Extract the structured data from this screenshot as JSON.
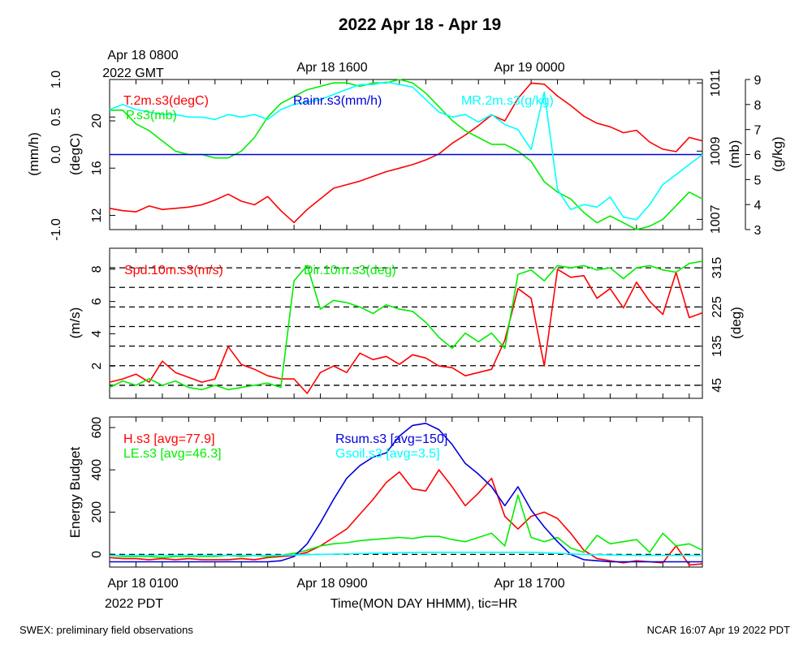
{
  "title": "2022 Apr 18 - Apr 19",
  "footer_left": "SWEX: preliminary field observations",
  "footer_right": "NCAR 16:07 Apr 19 2022 PDT",
  "top_time_labels": {
    "start_line1": "Apr 18 0800",
    "start_line2": "2022 GMT",
    "mid": "Apr 18 1600",
    "end": "Apr 19 0000"
  },
  "bottom_time_labels": {
    "start_line1": "Apr 18 0100",
    "start_line2": "2022 PDT",
    "mid": "Apr 18 0900",
    "end": "Apr 18 1700",
    "xlabel": "Time(MON DAY HHMM), tic=HR"
  },
  "colors": {
    "red": "#ff0000",
    "green": "#00ee00",
    "cyan": "#00ffff",
    "blue": "#0000dd",
    "black": "#000000"
  },
  "chart_data": [
    {
      "type": "line",
      "panel": "top",
      "x_unit": "hours since Apr 18 0100 PDT",
      "xlim": [
        0,
        22.5
      ],
      "axes": {
        "rain": {
          "label": "(mm/h)",
          "ticks": [
            "-1.0",
            "0.0",
            "0.5",
            "1.0"
          ],
          "ylim": [
            -1,
            1
          ]
        },
        "temp": {
          "label": "(degC)",
          "ticks": [
            "12",
            "16",
            "20"
          ],
          "ylim": [
            10.8,
            23.5
          ]
        },
        "pressure": {
          "label": "(mb)",
          "ticks": [
            "1007",
            "1009",
            "1011"
          ],
          "ylim": [
            1006.7,
            1011.1
          ]
        },
        "mr": {
          "label": "(g/kg)",
          "ticks": [
            "3",
            "4",
            "5",
            "6",
            "7",
            "8",
            "9"
          ],
          "ylim": [
            3,
            9
          ]
        }
      },
      "series": [
        {
          "name": "T.2m.s3(degC)",
          "axis": "temp",
          "color": "#ff0000",
          "x": [
            0,
            0.5,
            1,
            1.5,
            2,
            2.5,
            3,
            3.5,
            4,
            4.5,
            5,
            5.5,
            6,
            6.5,
            7,
            7.5,
            8,
            8.5,
            9,
            9.5,
            10,
            10.5,
            11,
            11.5,
            12,
            12.5,
            13,
            13.5,
            14,
            14.5,
            15,
            15.5,
            16,
            16.5,
            17,
            17.5,
            18,
            18.5,
            19,
            19.5,
            20,
            20.5,
            21,
            21.5,
            22,
            22.5
          ],
          "y": [
            12.6,
            12.4,
            12.3,
            12.8,
            12.5,
            12.6,
            12.7,
            12.9,
            13.3,
            13.8,
            13.2,
            12.9,
            13.6,
            12.4,
            11.4,
            12.5,
            13.4,
            14.3,
            14.6,
            14.9,
            15.3,
            15.7,
            16.0,
            16.3,
            16.7,
            17.2,
            18.1,
            18.8,
            19.6,
            20.5,
            20.0,
            21.9,
            23.2,
            23.1,
            22.1,
            21.3,
            20.4,
            19.8,
            19.5,
            19.0,
            19.2,
            18.2,
            17.6,
            17.4,
            18.6,
            18.3
          ]
        },
        {
          "name": "P.s3(mb)",
          "axis": "pressure",
          "color": "#00ee00",
          "x": [
            0,
            0.5,
            1,
            1.5,
            2,
            2.5,
            3,
            3.5,
            4,
            4.5,
            5,
            5.5,
            6,
            6.5,
            7,
            7.5,
            8,
            8.5,
            9,
            9.5,
            10,
            10.5,
            11,
            11.5,
            12,
            12.5,
            13,
            13.5,
            14,
            14.5,
            15,
            15.5,
            16,
            16.5,
            17,
            17.5,
            18,
            18.5,
            19,
            19.5,
            20,
            20.5,
            21,
            21.5,
            22,
            22.5
          ],
          "y": [
            1010.2,
            1010.2,
            1009.8,
            1009.6,
            1009.3,
            1009.0,
            1008.9,
            1008.9,
            1008.8,
            1008.8,
            1009.0,
            1009.4,
            1010.0,
            1010.4,
            1010.6,
            1010.8,
            1010.9,
            1011.0,
            1011.0,
            1010.9,
            1011.0,
            1011.0,
            1011.1,
            1011.0,
            1010.7,
            1010.3,
            1009.9,
            1009.6,
            1009.4,
            1009.2,
            1009.2,
            1009.0,
            1008.7,
            1008.1,
            1007.8,
            1007.6,
            1007.2,
            1006.9,
            1007.1,
            1006.9,
            1006.7,
            1006.8,
            1007.0,
            1007.4,
            1007.8,
            1007.6
          ]
        },
        {
          "name": "Rainr.s3(mm/h)",
          "axis": "rain",
          "color": "#0000dd",
          "x": [
            0,
            22.5
          ],
          "y": [
            0,
            0
          ]
        },
        {
          "name": "MR.2m.s3(g/kg)",
          "axis": "mr",
          "color": "#00ffff",
          "x": [
            0,
            0.5,
            1,
            1.5,
            2,
            2.5,
            3,
            3.5,
            4,
            4.5,
            5,
            5.5,
            6,
            6.5,
            7,
            7.5,
            8,
            8.5,
            9,
            9.5,
            10,
            10.5,
            11,
            11.5,
            12,
            12.5,
            13,
            13.5,
            14,
            14.5,
            15,
            15.5,
            16,
            16.5,
            17,
            17.5,
            18,
            18.5,
            19,
            19.5,
            20,
            20.5,
            21,
            21.5,
            22,
            22.5
          ],
          "y": [
            7.8,
            8.0,
            7.8,
            7.7,
            7.6,
            7.6,
            7.5,
            7.5,
            7.4,
            7.6,
            7.5,
            7.6,
            7.4,
            7.8,
            8.0,
            8.1,
            8.2,
            8.4,
            8.6,
            8.8,
            8.8,
            8.9,
            8.8,
            8.7,
            8.2,
            7.7,
            7.5,
            7.6,
            7.3,
            7.6,
            7.2,
            7.0,
            6.2,
            8.5,
            4.6,
            3.8,
            4.0,
            3.9,
            4.3,
            3.5,
            3.4,
            4.0,
            4.8,
            5.2,
            5.6,
            6.0
          ]
        }
      ]
    },
    {
      "type": "line",
      "panel": "middle",
      "x_unit": "hours since Apr 18 0100 PDT",
      "xlim": [
        0,
        22.5
      ],
      "axes": {
        "spd": {
          "label": "(m/s)",
          "ticks": [
            "2",
            "4",
            "6",
            "8"
          ],
          "ylim": [
            0,
            9.3
          ]
        },
        "dir": {
          "label": "(deg)",
          "ticks": [
            "45",
            "135",
            "225",
            "315"
          ],
          "ylim": [
            15,
            360
          ],
          "reference_lines": [
            45,
            90,
            135,
            180,
            225,
            270,
            315
          ]
        }
      },
      "series": [
        {
          "name": "Spd.10m.s3(m/s)",
          "axis": "spd",
          "color": "#ff0000",
          "x": [
            0,
            0.5,
            1,
            1.5,
            2,
            2.5,
            3,
            3.5,
            4,
            4.5,
            5,
            5.5,
            6,
            6.5,
            7,
            7.5,
            8,
            8.5,
            9,
            9.5,
            10,
            10.5,
            11,
            11.5,
            12,
            12.5,
            13,
            13.5,
            14,
            14.5,
            15,
            15.5,
            16,
            16.5,
            17,
            17.5,
            18,
            18.5,
            19,
            19.5,
            20,
            20.5,
            21,
            21.5,
            22,
            22.5
          ],
          "y": [
            1.0,
            1.2,
            1.5,
            1.0,
            2.3,
            1.6,
            1.3,
            1.0,
            1.2,
            3.2,
            2.1,
            1.8,
            1.4,
            1.2,
            1.2,
            0.3,
            1.6,
            2.0,
            1.6,
            2.8,
            2.4,
            2.6,
            2.1,
            2.7,
            2.5,
            2.0,
            1.9,
            1.4,
            1.6,
            1.8,
            3.6,
            6.8,
            6.2,
            2.0,
            8.0,
            7.5,
            7.6,
            6.2,
            6.8,
            5.6,
            7.2,
            6.0,
            5.2,
            7.8,
            5.0,
            5.3
          ]
        },
        {
          "name": "Dir.10m.s3(deg)",
          "axis": "dir",
          "color": "#00ee00",
          "x": [
            0,
            0.5,
            1,
            1.5,
            2,
            2.5,
            3,
            3.5,
            4,
            4.5,
            5,
            5.5,
            6,
            6.5,
            7,
            7.5,
            8,
            8.5,
            9,
            9.5,
            10,
            10.5,
            11,
            11.5,
            12,
            12.5,
            13,
            13.5,
            14,
            14.5,
            15,
            15.5,
            16,
            16.5,
            17,
            17.5,
            18,
            18.5,
            19,
            19.5,
            20,
            20.5,
            21,
            21.5,
            22,
            22.5
          ],
          "y": [
            40,
            55,
            45,
            60,
            45,
            55,
            40,
            35,
            45,
            35,
            40,
            45,
            50,
            40,
            285,
            320,
            220,
            240,
            235,
            225,
            210,
            230,
            220,
            215,
            190,
            155,
            130,
            165,
            145,
            165,
            130,
            300,
            310,
            285,
            320,
            315,
            320,
            310,
            315,
            290,
            315,
            320,
            310,
            305,
            325,
            330
          ]
        }
      ]
    },
    {
      "type": "line",
      "panel": "bottom",
      "x_unit": "hours since Apr 18 0100 PDT",
      "xlim": [
        0,
        22.5
      ],
      "axes": {
        "energy": {
          "label": "Energy Budget",
          "ticks": [
            "0",
            "200",
            "400",
            "600"
          ],
          "ylim": [
            -60,
            650
          ]
        }
      },
      "series": [
        {
          "name": "H.s3 [avg=77.9]",
          "axis": "energy",
          "color": "#ff0000",
          "x": [
            0,
            0.5,
            1,
            1.5,
            2,
            2.5,
            3,
            3.5,
            4,
            4.5,
            5,
            5.5,
            6,
            6.5,
            7,
            7.5,
            8,
            8.5,
            9,
            9.5,
            10,
            10.5,
            11,
            11.5,
            12,
            12.5,
            13,
            13.5,
            14,
            14.5,
            15,
            15.5,
            16,
            16.5,
            17,
            17.5,
            18,
            18.5,
            19,
            19.5,
            20,
            20.5,
            21,
            21.5,
            22,
            22.5
          ],
          "y": [
            -15,
            -20,
            -20,
            -25,
            -20,
            -25,
            -20,
            -25,
            -25,
            -25,
            -20,
            -25,
            -15,
            -10,
            -5,
            10,
            40,
            80,
            120,
            190,
            260,
            340,
            390,
            310,
            300,
            400,
            320,
            230,
            290,
            360,
            180,
            120,
            180,
            200,
            170,
            100,
            20,
            -20,
            -30,
            -40,
            -30,
            -35,
            -40,
            40,
            -50,
            -45
          ]
        },
        {
          "name": "LE.s3 [avg=46.3]",
          "axis": "energy",
          "color": "#00ee00",
          "x": [
            0,
            0.5,
            1,
            1.5,
            2,
            2.5,
            3,
            3.5,
            4,
            4.5,
            5,
            5.5,
            6,
            6.5,
            7,
            7.5,
            8,
            8.5,
            9,
            9.5,
            10,
            10.5,
            11,
            11.5,
            12,
            12.5,
            13,
            13.5,
            14,
            14.5,
            15,
            15.5,
            16,
            16.5,
            17,
            17.5,
            18,
            18.5,
            19,
            19.5,
            20,
            20.5,
            21,
            21.5,
            22,
            22.5
          ],
          "y": [
            -5,
            -10,
            -10,
            -10,
            -15,
            -10,
            -10,
            -10,
            -10,
            -5,
            -10,
            -5,
            -10,
            -5,
            5,
            20,
            40,
            50,
            55,
            65,
            70,
            75,
            80,
            75,
            85,
            85,
            70,
            60,
            80,
            100,
            40,
            280,
            80,
            60,
            80,
            30,
            10,
            90,
            50,
            60,
            70,
            10,
            100,
            40,
            50,
            20
          ]
        },
        {
          "name": "Rsum.s3 [avg=150]",
          "axis": "energy",
          "color": "#0000dd",
          "x": [
            0,
            0.5,
            1,
            1.5,
            2,
            2.5,
            3,
            3.5,
            4,
            4.5,
            5,
            5.5,
            6,
            6.5,
            7,
            7.5,
            8,
            8.5,
            9,
            9.5,
            10,
            10.5,
            11,
            11.5,
            12,
            12.5,
            13,
            13.5,
            14,
            14.5,
            15,
            15.5,
            16,
            16.5,
            17,
            17.5,
            18,
            18.5,
            19,
            19.5,
            20,
            20.5,
            21,
            21.5,
            22,
            22.5
          ],
          "y": [
            -35,
            -35,
            -35,
            -35,
            -35,
            -35,
            -35,
            -35,
            -35,
            -35,
            -35,
            -35,
            -35,
            -30,
            -10,
            50,
            150,
            260,
            360,
            420,
            460,
            480,
            560,
            610,
            620,
            590,
            520,
            430,
            380,
            320,
            230,
            320,
            210,
            130,
            60,
            0,
            -25,
            -30,
            -35,
            -35,
            -35,
            -35,
            -35,
            -35,
            -35,
            -35
          ]
        },
        {
          "name": "Gsoil.s3 [avg=3.5]",
          "axis": "energy",
          "color": "#00ffff",
          "x": [
            0,
            2,
            4,
            6,
            8,
            10,
            12,
            14,
            16,
            18,
            20,
            22.5
          ],
          "y": [
            -5,
            -5,
            -5,
            -5,
            0,
            5,
            10,
            10,
            10,
            0,
            -5,
            -5
          ]
        }
      ]
    }
  ]
}
